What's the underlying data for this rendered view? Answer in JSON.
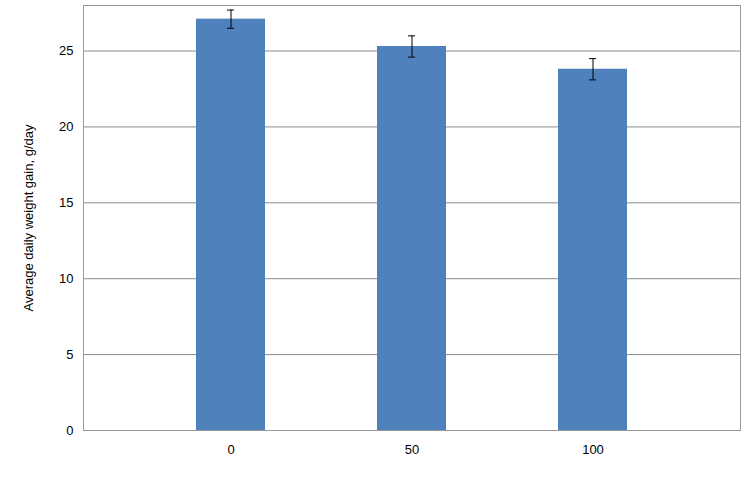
{
  "chart_data": {
    "type": "bar",
    "y_label": "Average daily weight gain, g/day",
    "categories": [
      "0",
      "50",
      "100"
    ],
    "values": [
      27.1,
      25.3,
      23.8
    ],
    "errors": [
      0.6,
      0.7,
      0.7
    ],
    "color": "#4f81bd",
    "ylim": [
      0,
      28
    ],
    "yticks": [
      0,
      5,
      10,
      15,
      20,
      25
    ],
    "grid": true
  }
}
